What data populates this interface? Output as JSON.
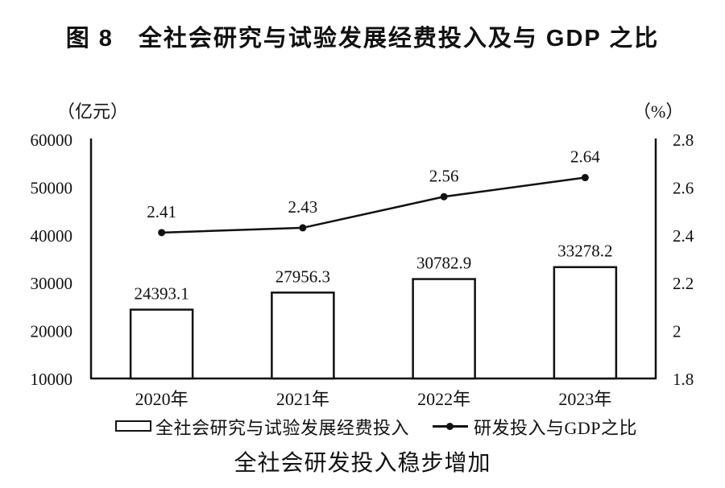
{
  "figure": {
    "title": "图 8　全社会研究与试验发展经费投入及与 GDP 之比",
    "caption": "全社会研发投入稳步增加",
    "left_axis_unit": "（亿元）",
    "right_axis_unit": "（%）"
  },
  "legend": {
    "bar_series_label": "全社会研究与试验发展经费投入",
    "line_series_label": "研发投入与GDP之比"
  },
  "chart_data": {
    "type": "bar",
    "subtype": "bar+line dual-axis",
    "title": "图 8　全社会研究与试验发展经费投入及与 GDP 之比",
    "categories": [
      "2020年",
      "2021年",
      "2022年",
      "2023年"
    ],
    "series": [
      {
        "name": "全社会研究与试验发展经费投入",
        "type": "bar",
        "axis": "left",
        "values": [
          24393.1,
          27956.3,
          30782.9,
          33278.2
        ],
        "value_labels": [
          "24393.1",
          "27956.3",
          "30782.9",
          "33278.2"
        ]
      },
      {
        "name": "研发投入与GDP之比",
        "type": "line",
        "axis": "right",
        "values": [
          2.41,
          2.43,
          2.56,
          2.64
        ],
        "value_labels": [
          "2.41",
          "2.43",
          "2.56",
          "2.64"
        ]
      }
    ],
    "left_axis": {
      "unit": "（亿元）",
      "min": 10000,
      "max": 60000,
      "tick_labels": [
        "60000",
        "50000",
        "40000",
        "30000",
        "20000",
        "10000"
      ]
    },
    "right_axis": {
      "unit": "（%）",
      "min": 1.8,
      "max": 2.8,
      "tick_labels": [
        "2.8",
        "2.6",
        "2.4",
        "2.2",
        "2",
        "1.8"
      ]
    },
    "grid": false,
    "legend_position": "bottom",
    "colors": {
      "ink": "#111111",
      "bar_fill": "#ffffff"
    }
  }
}
